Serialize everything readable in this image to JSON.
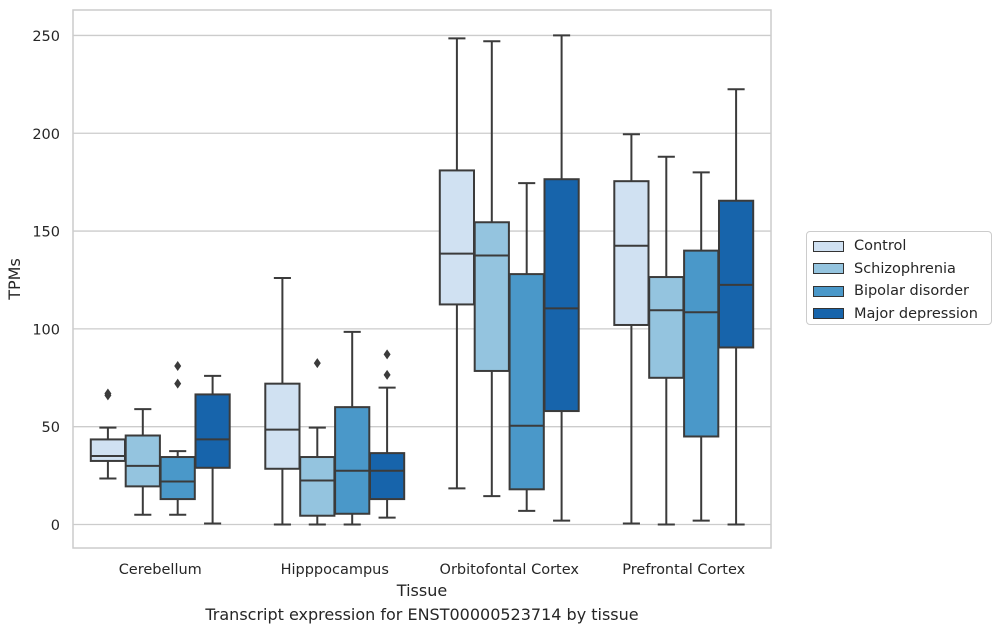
{
  "caption": "Transcript expression for ENST00000523714 by tissue",
  "legend": {
    "items": [
      {
        "label": "Control",
        "color": "#d0e1f2"
      },
      {
        "label": "Schizophrenia",
        "color": "#94c4df"
      },
      {
        "label": "Bipolar disorder",
        "color": "#4a98c9"
      },
      {
        "label": "Major depression",
        "color": "#1764ab"
      }
    ]
  },
  "chart_data": {
    "type": "box",
    "xlabel": "Tissue",
    "ylabel": "TPMs",
    "ylim": [
      -12,
      263
    ],
    "yticks": [
      0,
      50,
      100,
      150,
      200,
      250
    ],
    "grid": "horizontal",
    "legend_position": "right",
    "categories": [
      "Cerebellum",
      "Hipppocampus",
      "Orbitofontal Cortex",
      "Prefrontal Cortex"
    ],
    "series": [
      {
        "name": "Control",
        "color": "#d0e1f2",
        "boxes": [
          {
            "whisker_low": 23.5,
            "q1": 32.5,
            "median": 35,
            "q3": 43.5,
            "whisker_high": 49.5,
            "outliers": [
              66,
              67
            ]
          },
          {
            "whisker_low": 0,
            "q1": 28.5,
            "median": 48.5,
            "q3": 72,
            "whisker_high": 126,
            "outliers": []
          },
          {
            "whisker_low": 18.5,
            "q1": 112.5,
            "median": 138.5,
            "q3": 181,
            "whisker_high": 248.5,
            "outliers": []
          },
          {
            "whisker_low": 0.5,
            "q1": 102,
            "median": 142.5,
            "q3": 175.5,
            "whisker_high": 199.5,
            "outliers": []
          }
        ]
      },
      {
        "name": "Schizophrenia",
        "color": "#94c4df",
        "boxes": [
          {
            "whisker_low": 5,
            "q1": 19.5,
            "median": 30,
            "q3": 45.5,
            "whisker_high": 59,
            "outliers": []
          },
          {
            "whisker_low": 0,
            "q1": 4.5,
            "median": 22.5,
            "q3": 34.5,
            "whisker_high": 49.5,
            "outliers": [
              82.5
            ]
          },
          {
            "whisker_low": 14.5,
            "q1": 78.5,
            "median": 137.5,
            "q3": 154.5,
            "whisker_high": 247,
            "outliers": []
          },
          {
            "whisker_low": 0,
            "q1": 75,
            "median": 109.5,
            "q3": 126.5,
            "whisker_high": 188,
            "outliers": []
          }
        ]
      },
      {
        "name": "Bipolar disorder",
        "color": "#4a98c9",
        "boxes": [
          {
            "whisker_low": 5,
            "q1": 13,
            "median": 22,
            "q3": 34.5,
            "whisker_high": 37.5,
            "outliers": [
              72,
              81
            ]
          },
          {
            "whisker_low": 0,
            "q1": 5.5,
            "median": 27.5,
            "q3": 60,
            "whisker_high": 98.5,
            "outliers": []
          },
          {
            "whisker_low": 7,
            "q1": 18,
            "median": 50.5,
            "q3": 128,
            "whisker_high": 174.5,
            "outliers": []
          },
          {
            "whisker_low": 2,
            "q1": 45,
            "median": 108.5,
            "q3": 140,
            "whisker_high": 180,
            "outliers": []
          }
        ]
      },
      {
        "name": "Major depression",
        "color": "#1764ab",
        "boxes": [
          {
            "whisker_low": 0.5,
            "q1": 29,
            "median": 43.5,
            "q3": 66.5,
            "whisker_high": 76,
            "outliers": []
          },
          {
            "whisker_low": 3.5,
            "q1": 13,
            "median": 27.5,
            "q3": 36.5,
            "whisker_high": 70,
            "outliers": [
              76.5,
              87
            ]
          },
          {
            "whisker_low": 2,
            "q1": 58,
            "median": 110.5,
            "q3": 176.5,
            "whisker_high": 250,
            "outliers": []
          },
          {
            "whisker_low": 0,
            "q1": 90.5,
            "median": 122.5,
            "q3": 165.5,
            "whisker_high": 222.5,
            "outliers": []
          }
        ]
      }
    ]
  }
}
